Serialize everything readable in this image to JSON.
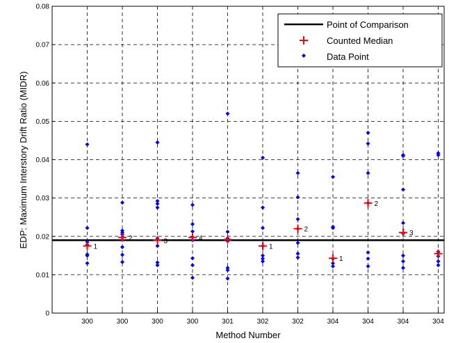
{
  "chart_data": {
    "type": "scatter",
    "xlabel": "Method Number",
    "ylabel": "EDP: Maximum Interstory Drift Ratio (MIDR)",
    "ylim": [
      0,
      0.08
    ],
    "yticks": [
      "0",
      "0.01",
      "0.02",
      "0.03",
      "0.04",
      "0.05",
      "0.06",
      "0.07",
      "0.08"
    ],
    "categories": [
      "300",
      "300",
      "300",
      "300",
      "301",
      "302",
      "302",
      "304",
      "304",
      "304",
      "304"
    ],
    "grid": true,
    "legend_position": "top-right",
    "reference_line": {
      "name": "Point of Comparison",
      "y": 0.019
    },
    "series": [
      {
        "name": "Data Point",
        "color": "#0000ff",
        "points": [
          [
            0,
            0.044
          ],
          [
            0,
            0.0222
          ],
          [
            0,
            0.0185
          ],
          [
            0,
            0.0178
          ],
          [
            0,
            0.0153
          ],
          [
            0,
            0.015
          ],
          [
            0,
            0.013
          ],
          [
            1,
            0.0288
          ],
          [
            1,
            0.0215
          ],
          [
            1,
            0.021
          ],
          [
            1,
            0.0205
          ],
          [
            1,
            0.0197
          ],
          [
            1,
            0.0172
          ],
          [
            1,
            0.0152
          ],
          [
            1,
            0.0133
          ],
          [
            2,
            0.0445
          ],
          [
            2,
            0.0292
          ],
          [
            2,
            0.0285
          ],
          [
            2,
            0.0275
          ],
          [
            2,
            0.0195
          ],
          [
            2,
            0.0175
          ],
          [
            2,
            0.0132
          ],
          [
            2,
            0.0125
          ],
          [
            3,
            0.0282
          ],
          [
            3,
            0.0232
          ],
          [
            3,
            0.0213
          ],
          [
            3,
            0.0198
          ],
          [
            3,
            0.019
          ],
          [
            3,
            0.0143
          ],
          [
            3,
            0.0125
          ],
          [
            3,
            0.0092
          ],
          [
            4,
            0.052
          ],
          [
            4,
            0.0212
          ],
          [
            4,
            0.0195
          ],
          [
            4,
            0.0188
          ],
          [
            4,
            0.0118
          ],
          [
            4,
            0.0112
          ],
          [
            4,
            0.009
          ],
          [
            5,
            0.0405
          ],
          [
            5,
            0.0275
          ],
          [
            5,
            0.0222
          ],
          [
            5,
            0.0175
          ],
          [
            5,
            0.015
          ],
          [
            5,
            0.0142
          ],
          [
            5,
            0.0135
          ],
          [
            6,
            0.0365
          ],
          [
            6,
            0.0302
          ],
          [
            6,
            0.0245
          ],
          [
            6,
            0.022
          ],
          [
            6,
            0.0183
          ],
          [
            6,
            0.0155
          ],
          [
            6,
            0.0145
          ],
          [
            7,
            0.0355
          ],
          [
            7,
            0.0225
          ],
          [
            7,
            0.0222
          ],
          [
            7,
            0.0142
          ],
          [
            7,
            0.013
          ],
          [
            7,
            0.0122
          ],
          [
            8,
            0.047
          ],
          [
            8,
            0.0442
          ],
          [
            8,
            0.0365
          ],
          [
            8,
            0.0287
          ],
          [
            8,
            0.0158
          ],
          [
            8,
            0.0142
          ],
          [
            8,
            0.0122
          ],
          [
            9,
            0.0412
          ],
          [
            9,
            0.041
          ],
          [
            9,
            0.0322
          ],
          [
            9,
            0.0235
          ],
          [
            9,
            0.0208
          ],
          [
            9,
            0.015
          ],
          [
            9,
            0.0135
          ],
          [
            9,
            0.0118
          ],
          [
            10,
            0.0417
          ],
          [
            10,
            0.0412
          ],
          [
            10,
            0.016
          ],
          [
            10,
            0.0155
          ],
          [
            10,
            0.0148
          ],
          [
            10,
            0.0135
          ],
          [
            10,
            0.0125
          ]
        ]
      },
      {
        "name": "Counted Median",
        "color": "#ff0000",
        "points": [
          [
            0,
            0.0175,
            "1"
          ],
          [
            1,
            0.0197,
            "2"
          ],
          [
            2,
            0.019,
            "3"
          ],
          [
            3,
            0.0197,
            "4"
          ],
          [
            4,
            0.0192,
            ""
          ],
          [
            5,
            0.0175,
            "1"
          ],
          [
            6,
            0.022,
            "2"
          ],
          [
            7,
            0.0143,
            "1"
          ],
          [
            8,
            0.0287,
            "2"
          ],
          [
            9,
            0.021,
            "3"
          ],
          [
            10,
            0.0155,
            ""
          ]
        ]
      }
    ]
  }
}
